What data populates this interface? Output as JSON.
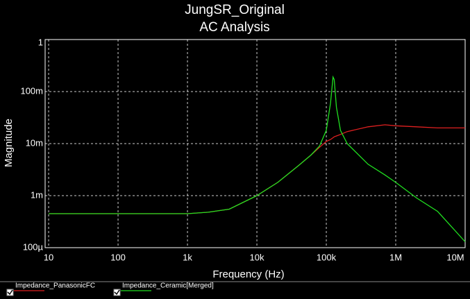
{
  "chart_data": {
    "type": "line",
    "title": "JungSR_Original",
    "subtitle": "AC Analysis",
    "x_label": "Frequency (Hz)",
    "y_label": "Magnitude",
    "x": [
      10,
      100,
      1000,
      2000,
      4000,
      10000,
      20000,
      40000,
      60000,
      80000,
      100000,
      115000,
      125000,
      130000,
      140000,
      160000,
      200000,
      400000,
      700000,
      1000000,
      2000000,
      4000000,
      10000000
    ],
    "series": [
      {
        "name": "Impedance_PanasonicFC",
        "color": "#e02020",
        "values": [
          0.00045,
          0.00045,
          0.00045,
          0.00048,
          0.00055,
          0.001,
          0.0018,
          0.0038,
          0.006,
          0.0085,
          0.011,
          0.012,
          0.013,
          0.0135,
          0.014,
          0.015,
          0.017,
          0.021,
          0.023,
          0.022,
          0.021,
          0.02,
          0.02
        ]
      },
      {
        "name": "Impedance_Ceramic[Merged]",
        "color": "#20e020",
        "values": [
          0.00045,
          0.00045,
          0.00045,
          0.00048,
          0.00055,
          0.001,
          0.0018,
          0.0038,
          0.006,
          0.009,
          0.018,
          0.06,
          0.19,
          0.17,
          0.05,
          0.018,
          0.01,
          0.004,
          0.0025,
          0.0018,
          0.0009,
          0.0005,
          0.00013
        ]
      }
    ],
    "xscale": "log",
    "yscale": "log",
    "grid": true,
    "xlim": [
      8.9,
      10000000
    ],
    "xticks": [
      10,
      100,
      {
        "value": 1000,
        "label": "1k"
      },
      {
        "value": 10000,
        "label": "10k"
      },
      {
        "value": 100000,
        "label": "100k"
      },
      {
        "value": 1000000,
        "label": "1M"
      },
      {
        "value": 10000000,
        "label": "10M"
      }
    ],
    "ylim": [
      0.0001,
      1
    ],
    "yticks": [
      {
        "value": 0.0001,
        "label": "100µ"
      },
      {
        "value": 0.001,
        "label": "1m"
      },
      {
        "value": 0.01,
        "label": "10m"
      },
      {
        "value": 0.1,
        "label": "100m"
      },
      1
    ]
  }
}
